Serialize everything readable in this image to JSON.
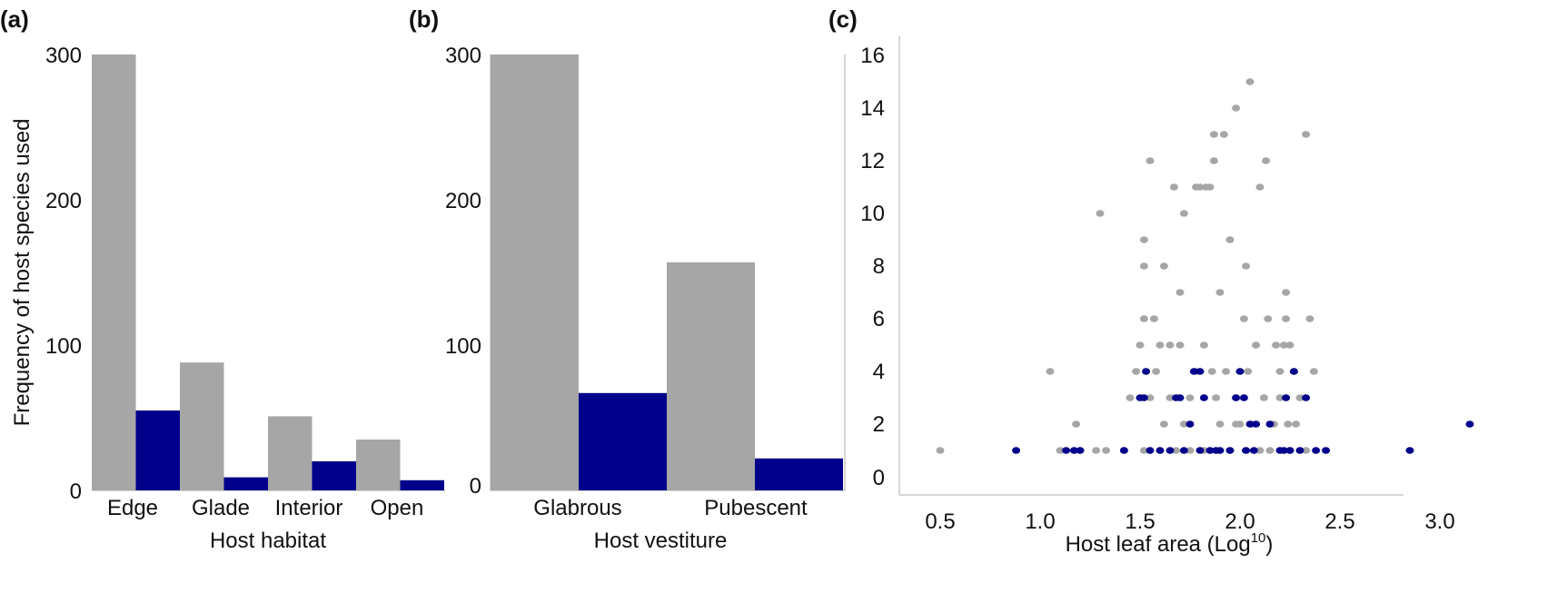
{
  "colors": {
    "gray": "#a6a6a6",
    "blue": "#00008b"
  },
  "chart_data": [
    {
      "panel_label": "(a)",
      "type": "bar",
      "categories": [
        "Edge",
        "Glade",
        "Interior",
        "Open"
      ],
      "series": [
        {
          "values": [
            300,
            88,
            51,
            35
          ],
          "color": "#a6a6a6"
        },
        {
          "values": [
            55,
            9,
            20,
            7
          ],
          "color": "#00008b"
        }
      ],
      "ylabel": "Frequency of host species used",
      "xlabel": "Host habitat",
      "ylim": [
        0,
        300
      ],
      "yticks": [
        0,
        100,
        200,
        300
      ],
      "grid": false
    },
    {
      "panel_label": "(b)",
      "type": "bar",
      "categories": [
        "Glabrous",
        "Pubescent"
      ],
      "series": [
        {
          "values": [
            300,
            157
          ],
          "color": "#a6a6a6"
        },
        {
          "values": [
            67,
            22
          ],
          "color": "#00008b"
        }
      ],
      "xlabel": "Host vestiture",
      "ylim": [
        0,
        300
      ],
      "yticks": [
        0,
        100,
        200,
        300
      ],
      "grid": false
    },
    {
      "panel_label": "(c)",
      "type": "scatter",
      "xlabel_main": "Host leaf area (Log",
      "xlabel_sup": "10",
      "xlabel_end": ")",
      "xlim": [
        0.3,
        3.4
      ],
      "ylim": [
        -0.5,
        16.5
      ],
      "xticks": [
        "0.5",
        "1.0",
        "1.5",
        "2.0",
        "2.5",
        "3.0"
      ],
      "yticks": [
        "0",
        "2",
        "4",
        "6",
        "8",
        "10",
        "12",
        "14",
        "16"
      ],
      "grid": false,
      "series": [
        {
          "color": "#a6a6a6",
          "points": [
            [
              0.5,
              1
            ],
            [
              1.05,
              4
            ],
            [
              1.1,
              1
            ],
            [
              1.18,
              2
            ],
            [
              1.2,
              1
            ],
            [
              1.28,
              1
            ],
            [
              1.33,
              1
            ],
            [
              1.3,
              10
            ],
            [
              1.42,
              1
            ],
            [
              1.45,
              3
            ],
            [
              1.48,
              4
            ],
            [
              1.5,
              5
            ],
            [
              1.52,
              1
            ],
            [
              1.52,
              6
            ],
            [
              1.52,
              8
            ],
            [
              1.52,
              9
            ],
            [
              1.55,
              12
            ],
            [
              1.55,
              1
            ],
            [
              1.55,
              3
            ],
            [
              1.57,
              6
            ],
            [
              1.58,
              4
            ],
            [
              1.6,
              1
            ],
            [
              1.62,
              2
            ],
            [
              1.62,
              8
            ],
            [
              1.65,
              3
            ],
            [
              1.65,
              5
            ],
            [
              1.67,
              11
            ],
            [
              1.68,
              1
            ],
            [
              1.7,
              5
            ],
            [
              1.7,
              7
            ],
            [
              1.72,
              10
            ],
            [
              1.72,
              2
            ],
            [
              1.75,
              1
            ],
            [
              1.75,
              3
            ],
            [
              1.78,
              4
            ],
            [
              1.78,
              11
            ],
            [
              1.8,
              11
            ],
            [
              1.82,
              1
            ],
            [
              1.82,
              5
            ],
            [
              1.83,
              11
            ],
            [
              1.85,
              11
            ],
            [
              1.86,
              4
            ],
            [
              1.87,
              13
            ],
            [
              1.87,
              12
            ],
            [
              1.88,
              3
            ],
            [
              1.9,
              7
            ],
            [
              1.9,
              2
            ],
            [
              1.92,
              13
            ],
            [
              1.93,
              4
            ],
            [
              1.95,
              9
            ],
            [
              1.95,
              1
            ],
            [
              1.98,
              14
            ],
            [
              1.98,
              3
            ],
            [
              2.0,
              2
            ],
            [
              2.02,
              6
            ],
            [
              2.03,
              8
            ],
            [
              2.03,
              1
            ],
            [
              2.04,
              4
            ],
            [
              2.05,
              15
            ],
            [
              2.06,
              2
            ],
            [
              2.08,
              5
            ],
            [
              2.1,
              11
            ],
            [
              2.1,
              1
            ],
            [
              2.12,
              3
            ],
            [
              2.13,
              12
            ],
            [
              2.14,
              6
            ],
            [
              2.15,
              1
            ],
            [
              2.17,
              2
            ],
            [
              2.2,
              4
            ],
            [
              2.2,
              3
            ],
            [
              2.22,
              5
            ],
            [
              2.23,
              7
            ],
            [
              2.23,
              6
            ],
            [
              2.24,
              2
            ],
            [
              2.25,
              1
            ],
            [
              2.25,
              5
            ],
            [
              2.27,
              4
            ],
            [
              2.28,
              2
            ],
            [
              2.3,
              3
            ],
            [
              2.33,
              13
            ],
            [
              2.33,
              1
            ],
            [
              2.35,
              6
            ],
            [
              2.37,
              4
            ],
            [
              1.6,
              5
            ],
            [
              1.98,
              2
            ],
            [
              2.18,
              5
            ]
          ]
        },
        {
          "color": "#00008b",
          "points": [
            [
              0.88,
              1
            ],
            [
              1.13,
              1
            ],
            [
              1.17,
              1
            ],
            [
              1.2,
              1
            ],
            [
              1.42,
              1
            ],
            [
              1.5,
              3
            ],
            [
              1.52,
              3
            ],
            [
              1.53,
              4
            ],
            [
              1.55,
              1
            ],
            [
              1.6,
              1
            ],
            [
              1.65,
              1
            ],
            [
              1.68,
              3
            ],
            [
              1.7,
              3
            ],
            [
              1.72,
              1
            ],
            [
              1.75,
              2
            ],
            [
              1.77,
              4
            ],
            [
              1.8,
              4
            ],
            [
              1.8,
              1
            ],
            [
              1.82,
              3
            ],
            [
              1.85,
              1
            ],
            [
              1.88,
              1
            ],
            [
              1.9,
              1
            ],
            [
              1.95,
              1
            ],
            [
              1.98,
              3
            ],
            [
              2.0,
              4
            ],
            [
              2.02,
              3
            ],
            [
              2.03,
              1
            ],
            [
              2.05,
              2
            ],
            [
              2.07,
              1
            ],
            [
              2.08,
              2
            ],
            [
              2.15,
              2
            ],
            [
              2.2,
              1
            ],
            [
              2.22,
              1
            ],
            [
              2.23,
              3
            ],
            [
              2.25,
              1
            ],
            [
              2.27,
              4
            ],
            [
              2.3,
              1
            ],
            [
              2.33,
              3
            ],
            [
              2.38,
              1
            ],
            [
              2.43,
              1
            ],
            [
              2.85,
              1
            ],
            [
              3.15,
              2
            ]
          ]
        }
      ]
    }
  ]
}
